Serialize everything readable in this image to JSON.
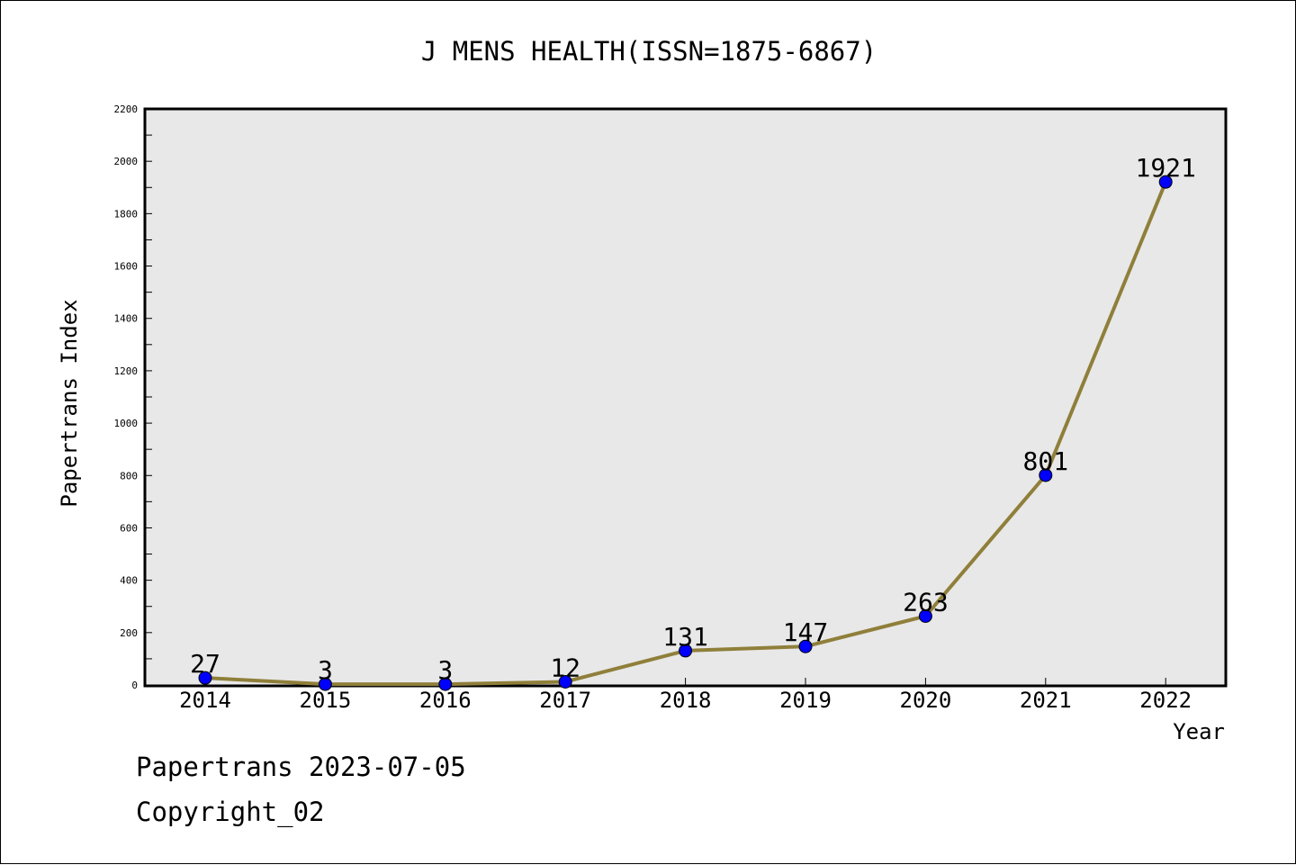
{
  "chart_data": {
    "type": "line",
    "title": "J MENS HEALTH(ISSN=1875-6867)",
    "xlabel": "Year",
    "ylabel": "Papertrans Index",
    "categories": [
      "2014",
      "2015",
      "2016",
      "2017",
      "2018",
      "2019",
      "2020",
      "2021",
      "2022"
    ],
    "values": [
      27,
      3,
      3,
      12,
      131,
      147,
      263,
      801,
      1921
    ],
    "data_labels": [
      "27",
      "3",
      "3",
      "12",
      "131",
      "147",
      "263",
      "801",
      "1921"
    ],
    "ylim": [
      0,
      2200
    ],
    "yticks": [
      "0",
      "200",
      "400",
      "600",
      "800",
      "1000",
      "1200",
      "1400",
      "1600",
      "1800",
      "2000",
      "2200"
    ],
    "grid": false,
    "legend": "none",
    "colors": {
      "line": "#8f7f3a",
      "marker_fill": "#0000ff",
      "plot_background": "#e8e8e8"
    }
  },
  "footer": {
    "line1": "Papertrans 2023-07-05",
    "line2": "Copyright_02"
  }
}
